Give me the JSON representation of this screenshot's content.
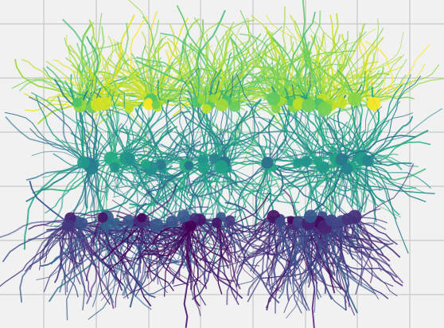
{
  "palette": {
    "background": "#f1f1f1",
    "gridline": "#c8c8c8",
    "viridis": [
      "#440154",
      "#482475",
      "#414487",
      "#355f8d",
      "#2a788e",
      "#21918c",
      "#22a884",
      "#44bf70",
      "#7ad151",
      "#bddf26",
      "#fde725"
    ]
  },
  "rows": [
    {
      "band": "top",
      "color_range": [
        0.7,
        1.0
      ],
      "direction": "up"
    },
    {
      "band": "middle",
      "color_range": [
        0.35,
        0.65
      ],
      "direction": "both"
    },
    {
      "band": "bottom",
      "color_range": [
        0.0,
        0.32
      ],
      "direction": "down"
    }
  ]
}
